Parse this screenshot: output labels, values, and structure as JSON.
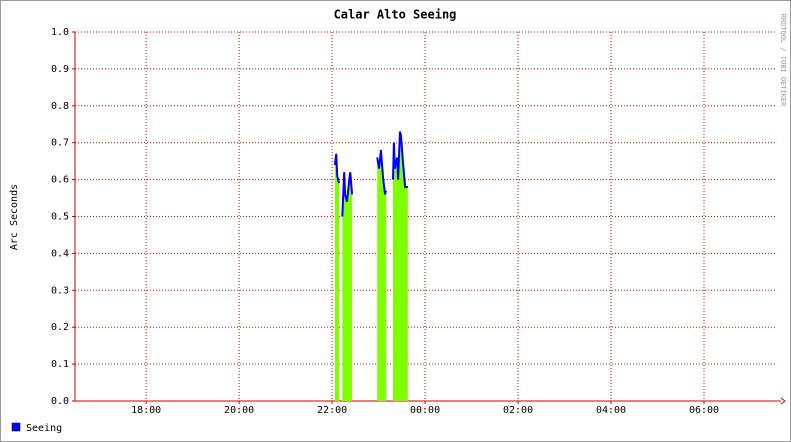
{
  "chart_data": {
    "type": "area-line",
    "title": "Calar Alto Seeing",
    "y_label": "Arc Seconds",
    "watermark": "RRDTOOL / TOBI OETIKER",
    "x": [
      22.06,
      22.09,
      22.11,
      22.15,
      22.17,
      22.22,
      22.26,
      22.28,
      22.32,
      22.37,
      22.39,
      22.43,
      22.7,
      22.97,
      23.01,
      23.05,
      23.1,
      23.14,
      23.16,
      23.2,
      23.31,
      23.33,
      23.35,
      23.4,
      23.42,
      23.46,
      23.48,
      23.53,
      23.57,
      23.63
    ],
    "series": [
      {
        "name": "Seeing",
        "color": "#0000ff",
        "fill": "#80ff00",
        "values": [
          0.64,
          0.67,
          0.61,
          0.59,
          null,
          0.5,
          0.62,
          0.56,
          0.54,
          0.6,
          0.62,
          0.56,
          null,
          0.66,
          0.63,
          0.68,
          0.6,
          0.56,
          0.57,
          null,
          0.6,
          0.7,
          0.63,
          0.66,
          0.6,
          0.73,
          0.72,
          0.64,
          0.58,
          0.58
        ]
      }
    ],
    "xlim": [
      16.47,
      31.57
    ],
    "xticks": [
      {
        "value": 18,
        "label": "18:00"
      },
      {
        "value": 20,
        "label": "20:00"
      },
      {
        "value": 22,
        "label": "22:00"
      },
      {
        "value": 24,
        "label": "00:00"
      },
      {
        "value": 26,
        "label": "02:00"
      },
      {
        "value": 28,
        "label": "04:00"
      },
      {
        "value": 30,
        "label": "06:00"
      }
    ],
    "ylim": [
      0,
      1
    ],
    "yticks": [
      {
        "value": 0,
        "label": "0.0"
      },
      0.1,
      0.2,
      0.3,
      0.4,
      0.5,
      0.6,
      0.7,
      0.8,
      0.9,
      {
        "value": 1,
        "label": "1.0"
      }
    ],
    "grid": true,
    "grid_color": "#cc0000"
  }
}
